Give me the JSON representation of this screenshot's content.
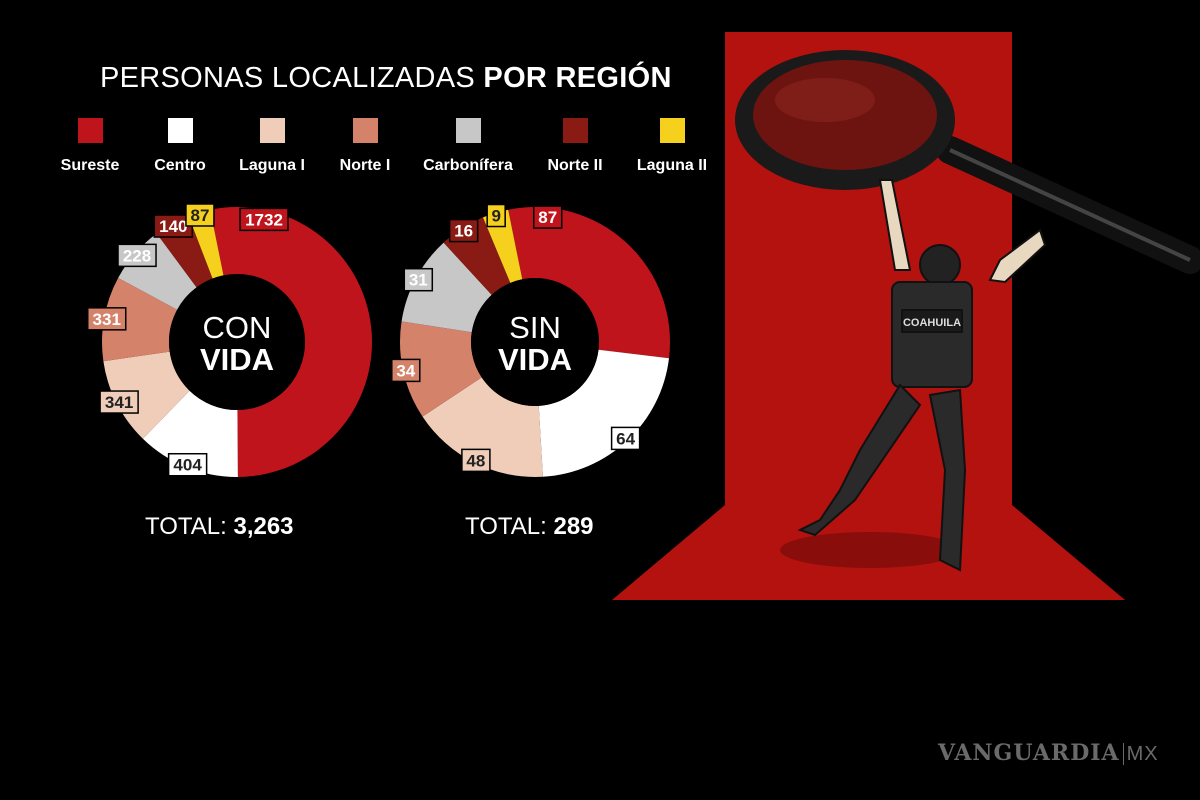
{
  "title": {
    "light": "PERSONAS LOCALIZADAS",
    "bold": "POR REGIÓN"
  },
  "legend": [
    {
      "label": "Sureste",
      "color": "#c0141c"
    },
    {
      "label": "Centro",
      "color": "#ffffff"
    },
    {
      "label": "Laguna I",
      "color": "#efcdb9"
    },
    {
      "label": "Norte I",
      "color": "#d4826a"
    },
    {
      "label": "Carbonífera",
      "color": "#c7c7c7"
    },
    {
      "label": "Norte II",
      "color": "#8a1a14"
    },
    {
      "label": "Laguna II",
      "color": "#f5d01c"
    }
  ],
  "chart_data": [
    {
      "type": "pie",
      "donut": true,
      "center_label": [
        "CON",
        "VIDA"
      ],
      "categories": [
        "Sureste",
        "Centro",
        "Laguna I",
        "Norte I",
        "Carbonífera",
        "Norte II",
        "Laguna II"
      ],
      "values": [
        1732,
        404,
        341,
        331,
        228,
        140,
        87
      ],
      "total_label": "TOTAL:",
      "total": "3,263"
    },
    {
      "type": "pie",
      "donut": true,
      "center_label": [
        "SIN",
        "VIDA"
      ],
      "categories": [
        "Sureste",
        "Centro",
        "Laguna I",
        "Norte I",
        "Carbonífera",
        "Norte II",
        "Laguna II"
      ],
      "values": [
        87,
        64,
        48,
        34,
        31,
        16,
        9
      ],
      "total_label": "TOTAL:",
      "total": "289"
    }
  ],
  "illustration": {
    "vest_text": "COAHUILA",
    "background_color": "#b3120f"
  },
  "brand": {
    "name": "VANGUARDIA",
    "suffix": "MX"
  }
}
